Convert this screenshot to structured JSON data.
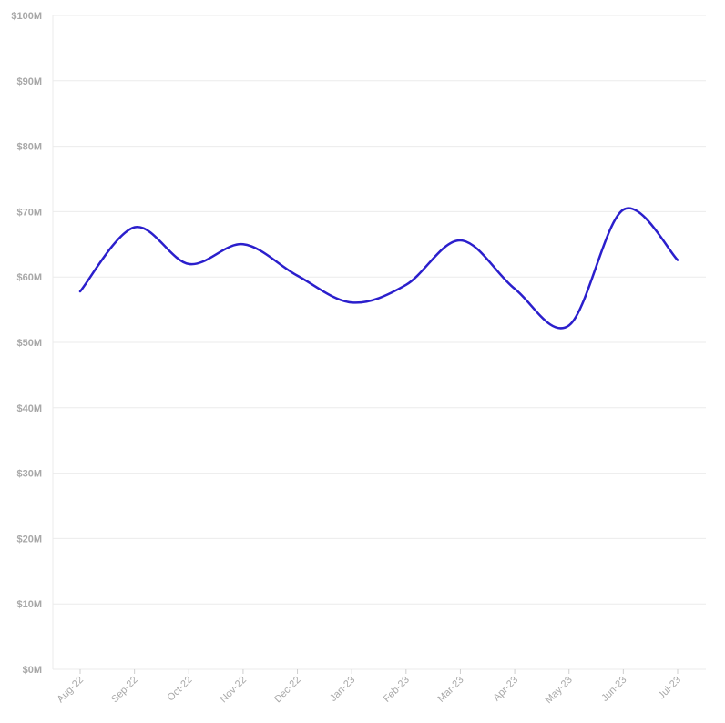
{
  "chart_data": {
    "type": "line",
    "title": "",
    "xlabel": "",
    "ylabel": "",
    "categories": [
      "Aug-22",
      "Sep-22",
      "Oct-22",
      "Nov-22",
      "Dec-22",
      "Jan-23",
      "Feb-23",
      "Mar-23",
      "Apr-23",
      "May-23",
      "Jun-23",
      "Jul-23"
    ],
    "series": [
      {
        "values": [
          57.8,
          67.6,
          62.0,
          65.0,
          60.2,
          56.1,
          58.8,
          65.6,
          58.2,
          52.6,
          70.3,
          62.6
        ]
      }
    ],
    "ylim": [
      0,
      100
    ],
    "yticks": [
      "$0M",
      "$10M",
      "$20M",
      "$30M",
      "$40M",
      "$50M",
      "$60M",
      "$70M",
      "$80M",
      "$90M",
      "$100M"
    ],
    "ytick_values": [
      0,
      10,
      20,
      30,
      40,
      50,
      60,
      70,
      80,
      90,
      100
    ],
    "grid": true,
    "legend": "none",
    "colors": {
      "line": "#2b1fcc",
      "grid": "#ebebeb",
      "tick_text": "#a8a8a8"
    }
  }
}
